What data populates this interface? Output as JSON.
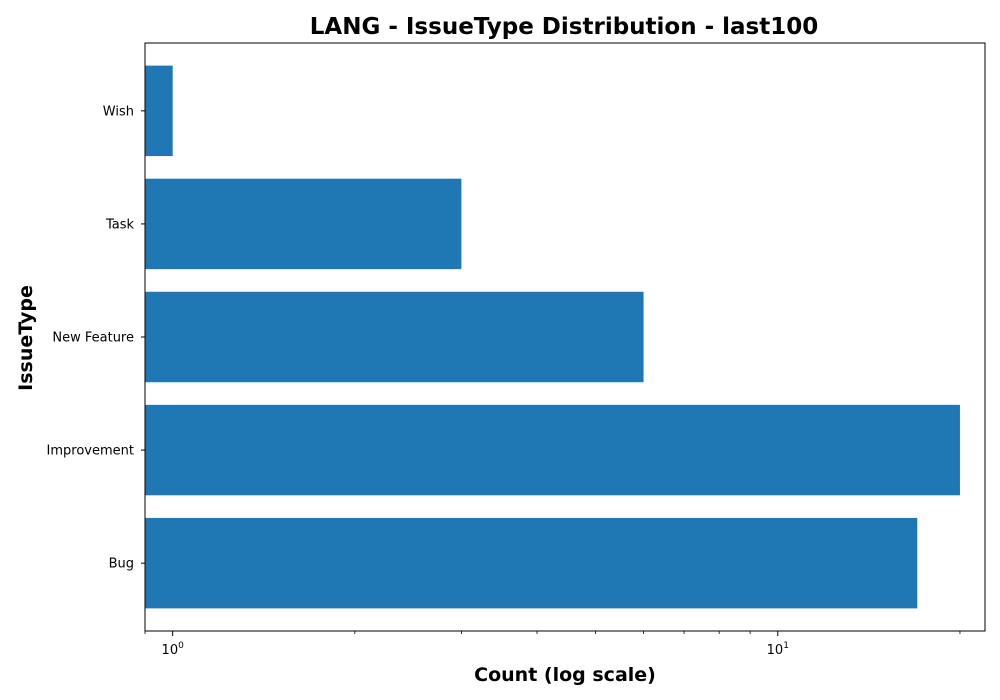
{
  "chart_data": {
    "type": "bar",
    "orientation": "horizontal",
    "title": "LANG - IssueType Distribution - last100",
    "xlabel": "Count (log scale)",
    "ylabel": "IssueType",
    "x_scale": "log",
    "xlim": [
      0.9,
      22
    ],
    "categories": [
      "Bug",
      "Improvement",
      "New Feature",
      "Task",
      "Wish"
    ],
    "values": [
      17,
      20,
      6,
      3,
      1
    ],
    "x_major_ticks": [
      {
        "value": 1,
        "base": "10",
        "exp": "0"
      },
      {
        "value": 10,
        "base": "10",
        "exp": "1"
      }
    ],
    "x_minor_ticks": [
      0.9,
      2,
      3,
      4,
      5,
      6,
      7,
      8,
      9,
      20
    ],
    "bar_color": "#1f77b4",
    "grid": false,
    "legend": "none"
  }
}
